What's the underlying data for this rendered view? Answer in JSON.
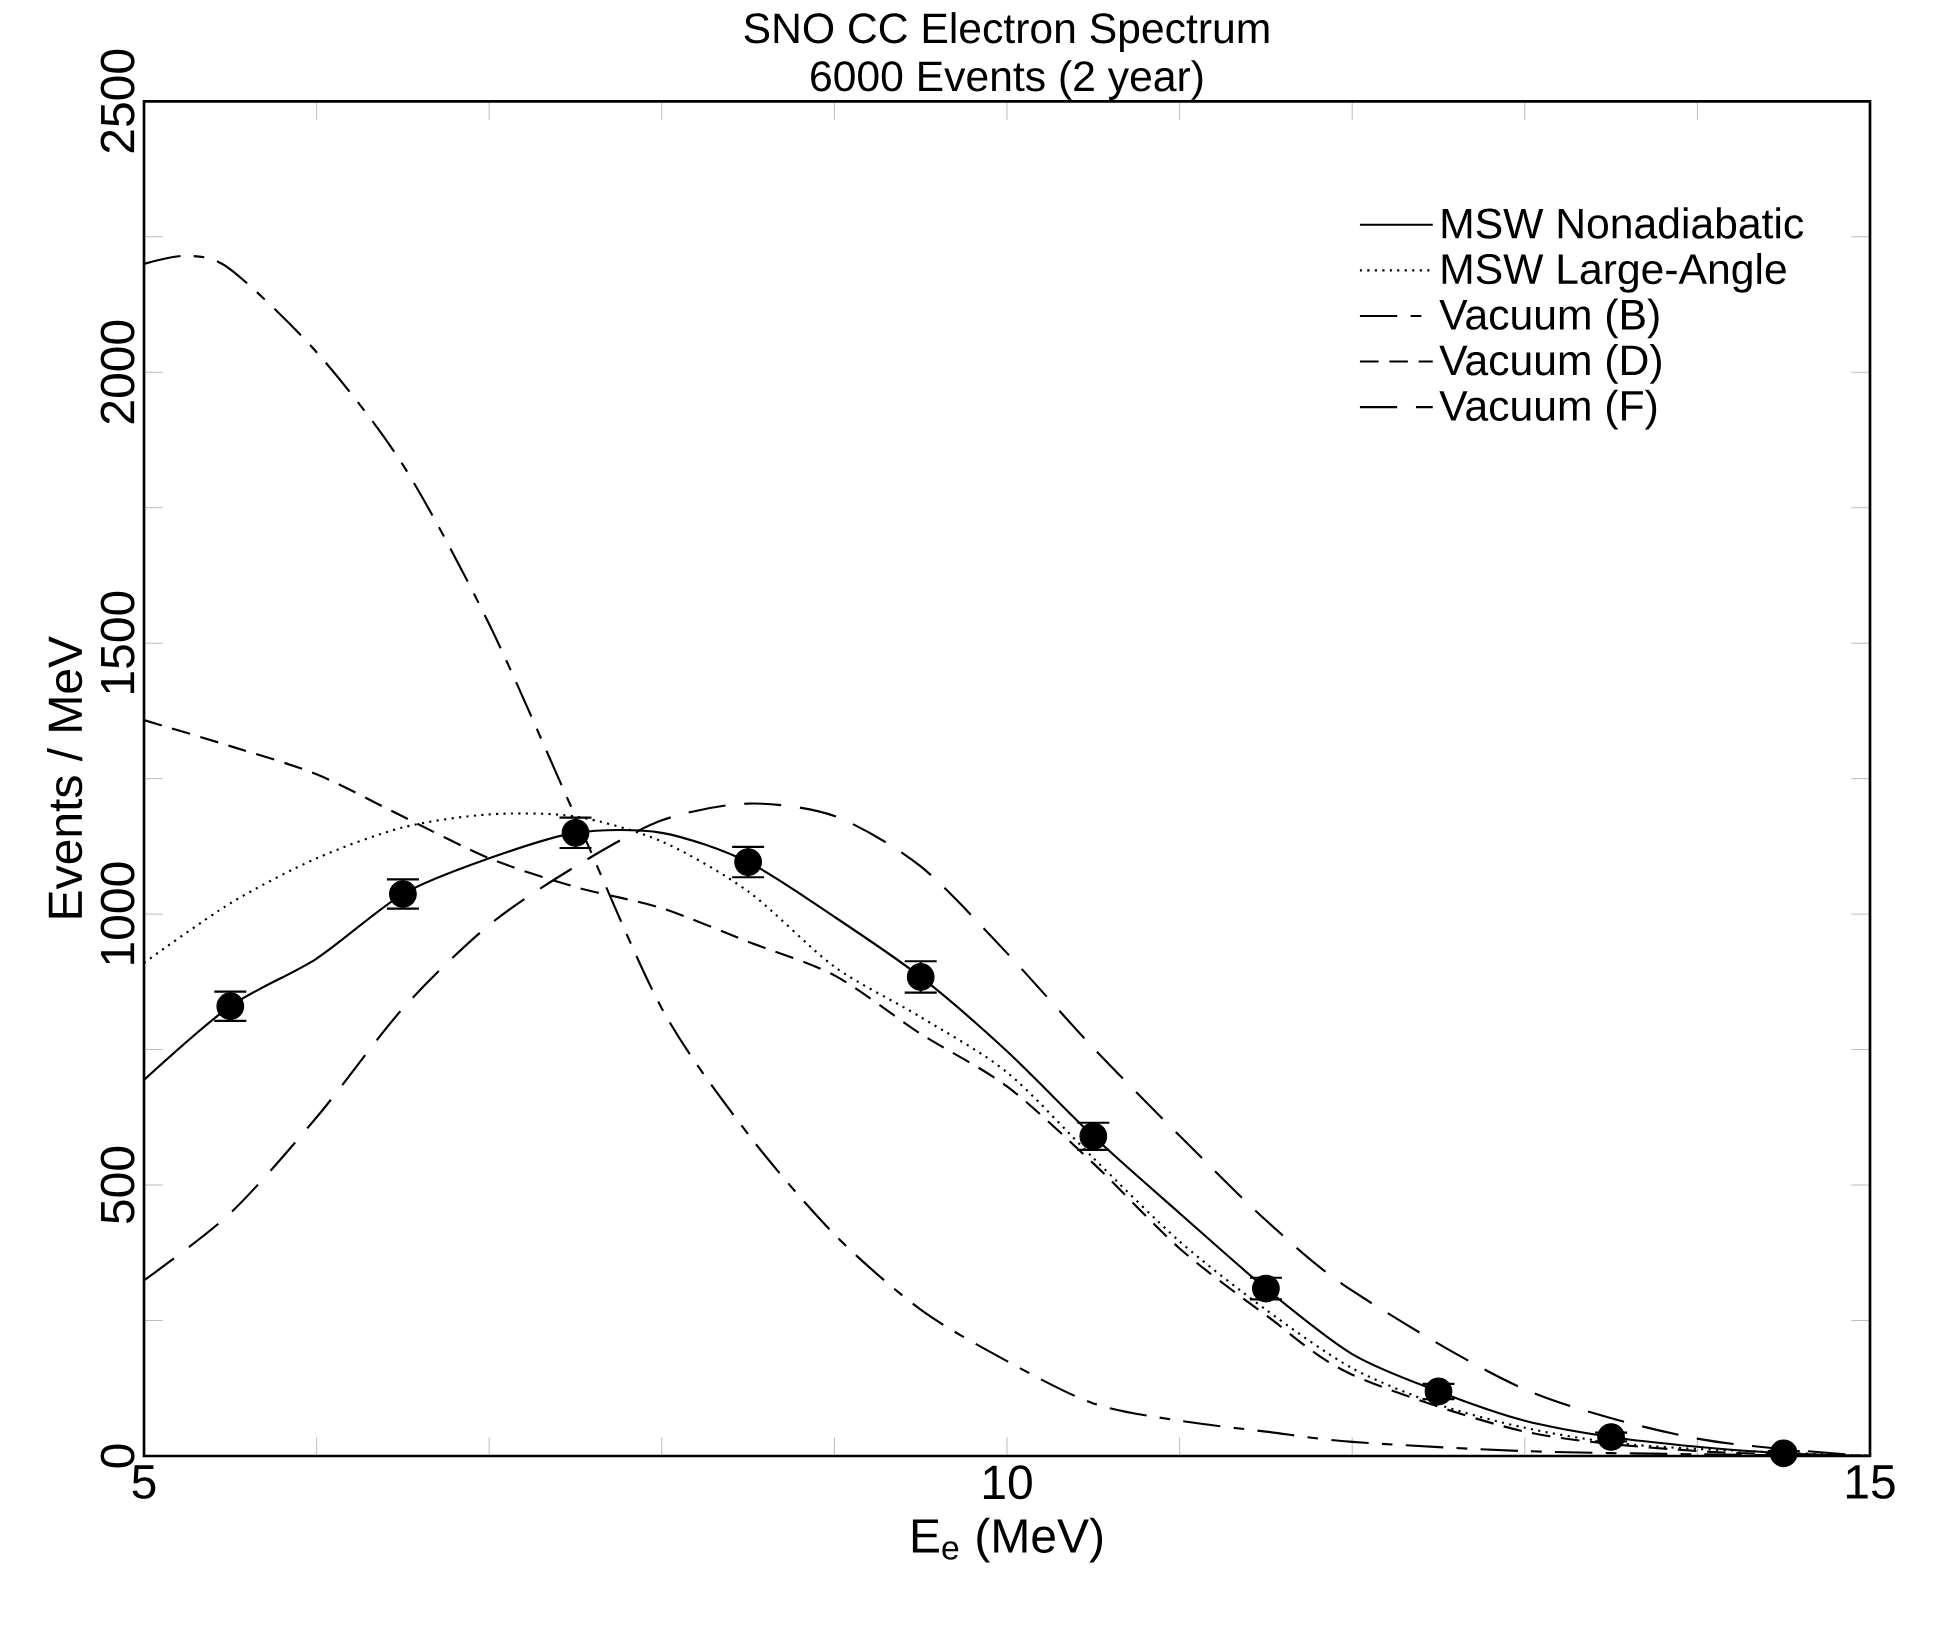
{
  "chart_data": {
    "type": "line",
    "title": "SNO CC Electron Spectrum",
    "subtitle": "6000 Events (2 year)",
    "xlabel": "E$_{e}$ (MeV)",
    "ylabel": "Events / MeV",
    "xlim": [
      5,
      15
    ],
    "ylim": [
      0,
      2500
    ],
    "xticks": [
      5,
      {
        "value": 6,
        "label": null
      },
      {
        "value": 7,
        "label": null
      },
      {
        "value": 8,
        "label": null
      },
      {
        "value": 9,
        "label": null
      },
      10,
      {
        "value": 11,
        "label": null
      },
      {
        "value": 12,
        "label": null
      },
      {
        "value": 13,
        "label": null
      },
      {
        "value": 14,
        "label": null
      },
      15
    ],
    "yticks": [
      0,
      {
        "value": 250,
        "label": null
      },
      500,
      {
        "value": 750,
        "label": null
      },
      1000,
      {
        "value": 1250,
        "label": null
      },
      1500,
      {
        "value": 1750,
        "label": null
      },
      2000,
      {
        "value": 2250,
        "label": null
      },
      2500
    ],
    "grid": false,
    "legend": "top right",
    "series": [
      {
        "name": "MSW Nonadiabatic",
        "color": "#000000",
        "line_style": "solid",
        "marker": "none",
        "x": [
          5,
          5.5,
          6,
          6.5,
          7,
          7.5,
          8,
          8.5,
          9,
          9.5,
          10,
          10.5,
          11,
          11.5,
          12,
          12.5,
          13,
          13.5,
          14,
          14.5,
          15
        ],
        "values": [
          694,
          830,
          918,
          1037,
          1103,
          1150,
          1150,
          1096,
          995,
          884,
          747,
          590,
          448,
          309,
          188,
          119,
          65,
          35,
          17,
          5,
          0
        ]
      },
      {
        "name": "MSW Large-Angle",
        "color": "#000000",
        "line_style": "dotted",
        "marker": "none",
        "x": [
          5,
          5.5,
          6,
          6.5,
          7,
          7.5,
          8,
          8.5,
          9,
          9.5,
          10,
          10.5,
          11,
          11.5,
          12,
          12.5,
          13,
          13.5,
          14,
          15
        ],
        "values": [
          910,
          1020,
          1103,
          1160,
          1184,
          1180,
          1134,
          1042,
          903,
          810,
          708,
          550,
          396,
          270,
          162,
          95,
          52,
          25,
          13,
          0
        ]
      },
      {
        "name": "Vacuum (B)",
        "color": "#000000",
        "line_style": "dashdot",
        "marker": "none",
        "x": [
          5,
          5.25,
          5.5,
          6,
          6.5,
          7,
          7.5,
          8,
          8.5,
          9,
          9.5,
          10,
          10.5,
          11,
          11.5,
          12,
          13,
          14,
          15
        ],
        "values": [
          2200,
          2215,
          2190,
          2037,
          1829,
          1535,
          1180,
          826,
          594,
          409,
          270,
          175,
          97,
          65,
          45,
          26,
          9,
          3,
          0
        ]
      },
      {
        "name": "Vacuum (D)",
        "color": "#000000",
        "line_style": "dashed",
        "marker": "none",
        "x": [
          5,
          5.5,
          6,
          6.5,
          7,
          7.5,
          8,
          8.5,
          9,
          9.5,
          10,
          10.5,
          11,
          11.5,
          12,
          13,
          14,
          15
        ],
        "values": [
          1358,
          1310,
          1258,
          1180,
          1103,
          1050,
          1011,
          949,
          887,
          779,
          682,
          540,
          383,
          260,
          150,
          45,
          9,
          0
        ]
      },
      {
        "name": "Vacuum (F)",
        "color": "#000000",
        "line_style": "longdashed",
        "marker": "none",
        "x": [
          5,
          5.5,
          6,
          6.5,
          7,
          7.5,
          8,
          8.5,
          9,
          9.5,
          10,
          10.5,
          11,
          11.5,
          12,
          13,
          14,
          15
        ],
        "values": [
          324,
          448,
          625,
          826,
          980,
          1088,
          1173,
          1204,
          1181,
          1088,
          928,
          753,
          591,
          435,
          305,
          123,
          32,
          0
        ]
      },
      {
        "type": "scatter",
        "marker": "circle",
        "color": "#000000",
        "x": [
          5.5,
          6.5,
          7.5,
          8.5,
          9.5,
          10.5,
          11.5,
          12.5,
          13.5,
          14.5
        ],
        "values": [
          830,
          1037,
          1150,
          1096,
          884,
          590,
          309,
          119,
          35,
          5
        ],
        "errors": [
          27,
          27,
          28,
          28,
          29,
          25,
          20,
          14,
          8,
          4
        ]
      }
    ]
  }
}
